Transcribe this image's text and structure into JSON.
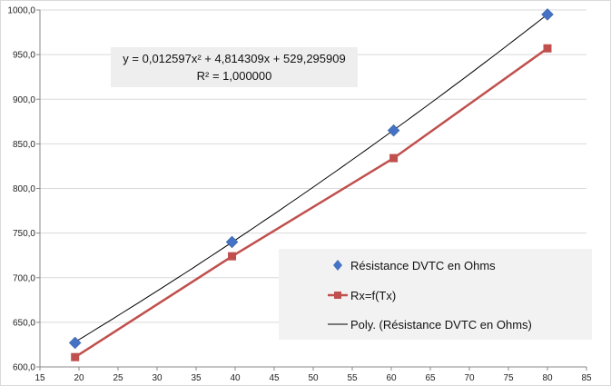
{
  "chart_data": {
    "type": "scatter",
    "xlim": [
      15,
      85
    ],
    "ylim": [
      600,
      1000
    ],
    "x_ticks": [
      15,
      20,
      25,
      30,
      35,
      40,
      45,
      50,
      55,
      60,
      65,
      70,
      75,
      80,
      85
    ],
    "y_ticks": [
      600,
      650,
      700,
      750,
      800,
      850,
      900,
      950,
      1000
    ],
    "y_tick_labels": [
      "600,0",
      "650,0",
      "700,0",
      "750,0",
      "800,0",
      "850,0",
      "900,0",
      "950,0",
      "1000,0"
    ],
    "grid": "horizontal",
    "series": [
      {
        "name": "Résistance DVTC en Ohms",
        "color": "#4472C4",
        "marker": "diamond",
        "x": [
          19.5,
          39.6,
          60.3,
          80.0
        ],
        "y": [
          627,
          740,
          865,
          995
        ]
      },
      {
        "name": "Rx=f(Tx)",
        "color": "#C0504D",
        "marker": "square",
        "line": true,
        "x": [
          19.5,
          39.6,
          60.3,
          80.0
        ],
        "y": [
          611,
          724,
          834,
          957
        ]
      }
    ],
    "trendline": {
      "name": "Poly. (Résistance DVTC en Ohms)",
      "color": "#000000",
      "coefficients": [
        0.012597,
        4.814309,
        529.295909
      ],
      "x_range": [
        19.5,
        80.0
      ]
    },
    "equation_lines": [
      "y = 0,012597x² + 4,814309x + 529,295909",
      "R² = 1,000000"
    ],
    "legend_position": "bottom-right"
  }
}
